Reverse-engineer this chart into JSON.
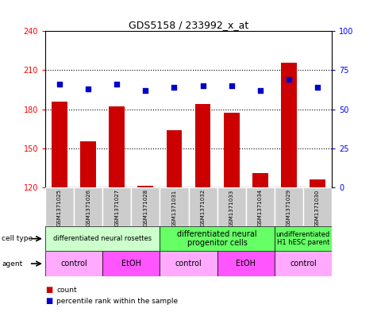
{
  "title": "GDS5158 / 233992_x_at",
  "samples": [
    "GSM1371025",
    "GSM1371026",
    "GSM1371027",
    "GSM1371028",
    "GSM1371031",
    "GSM1371032",
    "GSM1371033",
    "GSM1371034",
    "GSM1371029",
    "GSM1371030"
  ],
  "counts": [
    186,
    155,
    182,
    121,
    164,
    184,
    177,
    131,
    216,
    126
  ],
  "percentile_ranks": [
    66,
    63,
    66,
    62,
    64,
    65,
    65,
    62,
    69,
    64
  ],
  "ylim_left": [
    120,
    240
  ],
  "ylim_right": [
    0,
    100
  ],
  "yticks_left": [
    120,
    150,
    180,
    210,
    240
  ],
  "yticks_right": [
    0,
    25,
    50,
    75,
    100
  ],
  "cell_type_groups": [
    {
      "label": "differentiated neural rosettes",
      "start": 0,
      "end": 4,
      "color": "#ccffcc",
      "fontsize": 6
    },
    {
      "label": "differentiated neural\nprogenitor cells",
      "start": 4,
      "end": 8,
      "color": "#66ff66",
      "fontsize": 7
    },
    {
      "label": "undifferentiated\nH1 hESC parent",
      "start": 8,
      "end": 10,
      "color": "#66ff66",
      "fontsize": 6
    }
  ],
  "agent_groups": [
    {
      "label": "control",
      "start": 0,
      "end": 2,
      "color": "#ffaaff"
    },
    {
      "label": "EtOH",
      "start": 2,
      "end": 4,
      "color": "#ff55ff"
    },
    {
      "label": "control",
      "start": 4,
      "end": 6,
      "color": "#ffaaff"
    },
    {
      "label": "EtOH",
      "start": 6,
      "end": 8,
      "color": "#ff55ff"
    },
    {
      "label": "control",
      "start": 8,
      "end": 10,
      "color": "#ffaaff"
    }
  ],
  "bar_color": "#cc0000",
  "dot_color": "#0000cc",
  "bar_width": 0.55,
  "sample_box_color": "#cccccc",
  "grid_yticks": [
    150,
    180,
    210
  ]
}
